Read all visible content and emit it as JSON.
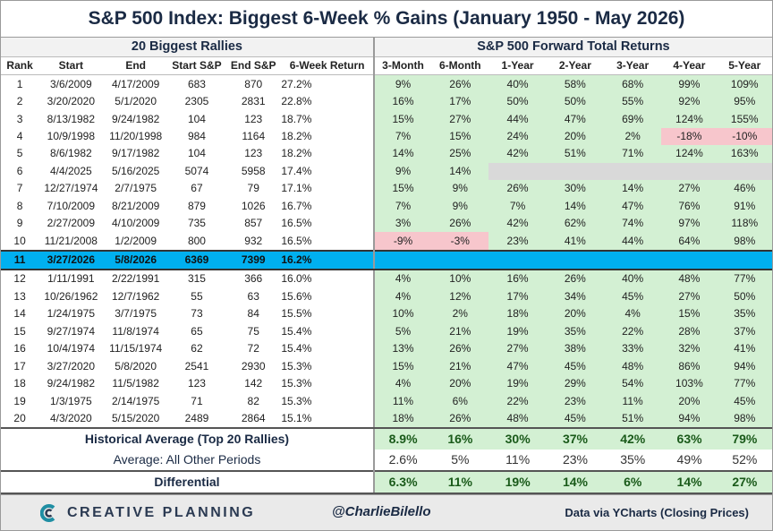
{
  "title": "S&P 500 Index: Biggest 6-Week % Gains (January 1950 - May 2026)",
  "group_left": "20 Biggest Rallies",
  "group_right": "S&P 500 Forward Total Returns",
  "columns": [
    "Rank",
    "Start",
    "End",
    "Start S&P",
    "End S&P",
    "6-Week Return",
    "3-Month",
    "6-Month",
    "1-Year",
    "2-Year",
    "3-Year",
    "4-Year",
    "5-Year"
  ],
  "rows": [
    [
      "1",
      "3/6/2009",
      "4/17/2009",
      "683",
      "870",
      "27.2%",
      "9%",
      "26%",
      "40%",
      "58%",
      "68%",
      "99%",
      "109%"
    ],
    [
      "2",
      "3/20/2020",
      "5/1/2020",
      "2305",
      "2831",
      "22.8%",
      "16%",
      "17%",
      "50%",
      "50%",
      "55%",
      "92%",
      "95%"
    ],
    [
      "3",
      "8/13/1982",
      "9/24/1982",
      "104",
      "123",
      "18.7%",
      "15%",
      "27%",
      "44%",
      "47%",
      "69%",
      "124%",
      "155%"
    ],
    [
      "4",
      "10/9/1998",
      "11/20/1998",
      "984",
      "1164",
      "18.2%",
      "7%",
      "15%",
      "24%",
      "20%",
      "2%",
      "-18%",
      "-10%"
    ],
    [
      "5",
      "8/6/1982",
      "9/17/1982",
      "104",
      "123",
      "18.2%",
      "14%",
      "25%",
      "42%",
      "51%",
      "71%",
      "124%",
      "163%"
    ],
    [
      "6",
      "4/4/2025",
      "5/16/2025",
      "5074",
      "5958",
      "17.4%",
      "9%",
      "14%",
      "",
      "",
      "",
      "",
      ""
    ],
    [
      "7",
      "12/27/1974",
      "2/7/1975",
      "67",
      "79",
      "17.1%",
      "15%",
      "9%",
      "26%",
      "30%",
      "14%",
      "27%",
      "46%"
    ],
    [
      "8",
      "7/10/2009",
      "8/21/2009",
      "879",
      "1026",
      "16.7%",
      "7%",
      "9%",
      "7%",
      "14%",
      "47%",
      "76%",
      "91%"
    ],
    [
      "9",
      "2/27/2009",
      "4/10/2009",
      "735",
      "857",
      "16.5%",
      "3%",
      "26%",
      "42%",
      "62%",
      "74%",
      "97%",
      "118%"
    ],
    [
      "10",
      "11/21/2008",
      "1/2/2009",
      "800",
      "932",
      "16.5%",
      "-9%",
      "-3%",
      "23%",
      "41%",
      "44%",
      "64%",
      "98%"
    ],
    [
      "11",
      "3/27/2026",
      "5/8/2026",
      "6369",
      "7399",
      "16.2%",
      "",
      "",
      "",
      "",
      "",
      "",
      ""
    ],
    [
      "12",
      "1/11/1991",
      "2/22/1991",
      "315",
      "366",
      "16.0%",
      "4%",
      "10%",
      "16%",
      "26%",
      "40%",
      "48%",
      "77%"
    ],
    [
      "13",
      "10/26/1962",
      "12/7/1962",
      "55",
      "63",
      "15.6%",
      "4%",
      "12%",
      "17%",
      "34%",
      "45%",
      "27%",
      "50%"
    ],
    [
      "14",
      "1/24/1975",
      "3/7/1975",
      "73",
      "84",
      "15.5%",
      "10%",
      "2%",
      "18%",
      "20%",
      "4%",
      "15%",
      "35%"
    ],
    [
      "15",
      "9/27/1974",
      "11/8/1974",
      "65",
      "75",
      "15.4%",
      "5%",
      "21%",
      "19%",
      "35%",
      "22%",
      "28%",
      "37%"
    ],
    [
      "16",
      "10/4/1974",
      "11/15/1974",
      "62",
      "72",
      "15.4%",
      "13%",
      "26%",
      "27%",
      "38%",
      "33%",
      "32%",
      "41%"
    ],
    [
      "17",
      "3/27/2020",
      "5/8/2020",
      "2541",
      "2930",
      "15.3%",
      "15%",
      "21%",
      "47%",
      "45%",
      "48%",
      "86%",
      "94%"
    ],
    [
      "18",
      "9/24/1982",
      "11/5/1982",
      "123",
      "142",
      "15.3%",
      "4%",
      "20%",
      "19%",
      "29%",
      "54%",
      "103%",
      "77%"
    ],
    [
      "19",
      "1/3/1975",
      "2/14/1975",
      "71",
      "82",
      "15.3%",
      "11%",
      "6%",
      "22%",
      "23%",
      "11%",
      "20%",
      "45%"
    ],
    [
      "20",
      "4/3/2020",
      "5/15/2020",
      "2489",
      "2864",
      "15.1%",
      "18%",
      "26%",
      "48%",
      "45%",
      "51%",
      "94%",
      "98%"
    ]
  ],
  "summary": {
    "historical": {
      "label": "Historical Average (Top 20 Rallies)",
      "values": [
        "8.9%",
        "16%",
        "30%",
        "37%",
        "42%",
        "63%",
        "79%"
      ]
    },
    "other": {
      "label": "Average: All Other Periods",
      "values": [
        "2.6%",
        "5%",
        "11%",
        "23%",
        "35%",
        "49%",
        "52%"
      ]
    },
    "differential": {
      "label": "Differential",
      "values": [
        "6.3%",
        "11%",
        "19%",
        "14%",
        "6%",
        "14%",
        "27%"
      ]
    }
  },
  "footer": {
    "brand": "CREATIVE PLANNING",
    "handle": "@CharlieBilello",
    "source": "Data via YCharts (Closing Prices)"
  },
  "colors": {
    "positive_cell": "#d3f0d3",
    "negative_cell": "#f7c6cc",
    "empty_cell": "#d9d9d9",
    "highlight_row": "#00b0f0",
    "brand_teal": "#1f8ea3"
  },
  "highlight_rank": "11"
}
